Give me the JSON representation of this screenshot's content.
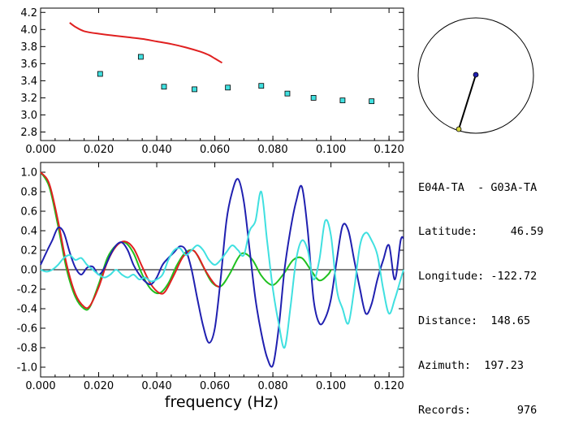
{
  "chart_data": [
    {
      "type": "scatter",
      "xlabel": "",
      "xlim": [
        0.0,
        0.125
      ],
      "ylim": [
        2.7,
        4.25
      ],
      "x_ticks": [
        0.0,
        0.02,
        0.04,
        0.06,
        0.08,
        0.1,
        0.12
      ],
      "x_tick_labels": [
        "0.000",
        "0.020",
        "0.040",
        "0.060",
        "0.080",
        "0.100",
        "0.120"
      ],
      "y_ticks": [
        2.8,
        3.0,
        3.2,
        3.4,
        3.6,
        3.8,
        4.0,
        4.2
      ],
      "y_tick_labels": [
        "2.8",
        "3.0",
        "3.2",
        "3.4",
        "3.6",
        "3.8",
        "4.0",
        "4.2"
      ],
      "series": [
        {
          "kind": "line",
          "color": "#e02020",
          "x": [
            0.01,
            0.012,
            0.015,
            0.02,
            0.025,
            0.03,
            0.035,
            0.04,
            0.045,
            0.05,
            0.055,
            0.058,
            0.06,
            0.0625
          ],
          "y": [
            4.08,
            4.03,
            3.98,
            3.95,
            3.93,
            3.91,
            3.89,
            3.86,
            3.83,
            3.79,
            3.74,
            3.7,
            3.66,
            3.61
          ]
        },
        {
          "kind": "points",
          "color": "#40e0e0",
          "x": [
            0.0205,
            0.0345,
            0.0425,
            0.053,
            0.0645,
            0.076,
            0.085,
            0.094,
            0.104,
            0.114
          ],
          "y": [
            3.48,
            3.68,
            3.33,
            3.3,
            3.32,
            3.34,
            3.25,
            3.2,
            3.17,
            3.16
          ]
        }
      ]
    },
    {
      "type": "line",
      "xlabel": "frequency  (Hz)",
      "xlim": [
        0.0,
        0.125
      ],
      "ylim": [
        -1.1,
        1.1
      ],
      "x_ticks": [
        0.0,
        0.02,
        0.04,
        0.06,
        0.08,
        0.1,
        0.12
      ],
      "x_tick_labels": [
        "0.000",
        "0.020",
        "0.040",
        "0.060",
        "0.080",
        "0.100",
        "0.120"
      ],
      "y_ticks": [
        -1.0,
        -0.8,
        -0.6,
        -0.4,
        -0.2,
        0.0,
        0.2,
        0.4,
        0.6,
        0.8,
        1.0
      ],
      "y_tick_labels": [
        "-1.0",
        "-0.8",
        "-0.6",
        "-0.4",
        "-0.2",
        "0.0",
        "0.2",
        "0.4",
        "0.6",
        "0.8",
        "1.0"
      ],
      "zero_line": true,
      "series": [
        {
          "color": "#20c020",
          "x": [
            0.0,
            0.003,
            0.006,
            0.009,
            0.012,
            0.015,
            0.017,
            0.02,
            0.023,
            0.026,
            0.029,
            0.032,
            0.035,
            0.038,
            0.041,
            0.044,
            0.047,
            0.05,
            0.053,
            0.056,
            0.059,
            0.062,
            0.065,
            0.068,
            0.07,
            0.073,
            0.076,
            0.079,
            0.081,
            0.084,
            0.087,
            0.09,
            0.093,
            0.096,
            0.099,
            0.1
          ],
          "y": [
            1.0,
            0.85,
            0.45,
            0.0,
            -0.28,
            -0.4,
            -0.38,
            -0.15,
            0.12,
            0.25,
            0.28,
            0.17,
            -0.05,
            -0.2,
            -0.24,
            -0.14,
            0.05,
            0.18,
            0.19,
            0.03,
            -0.13,
            -0.17,
            -0.05,
            0.12,
            0.17,
            0.1,
            -0.06,
            -0.15,
            -0.14,
            -0.03,
            0.1,
            0.12,
            0.0,
            -0.11,
            -0.05,
            0.0
          ]
        },
        {
          "color": "#e02020",
          "x": [
            0.0,
            0.003,
            0.006,
            0.009,
            0.012,
            0.015,
            0.017,
            0.02,
            0.023,
            0.026,
            0.029,
            0.032,
            0.035,
            0.038,
            0.041,
            0.043,
            0.046,
            0.049,
            0.052,
            0.054,
            0.057,
            0.06,
            0.062
          ],
          "y": [
            1.0,
            0.88,
            0.5,
            0.05,
            -0.25,
            -0.38,
            -0.37,
            -0.18,
            0.08,
            0.24,
            0.29,
            0.22,
            0.03,
            -0.15,
            -0.24,
            -0.22,
            -0.05,
            0.13,
            0.2,
            0.15,
            -0.02,
            -0.15,
            -0.18
          ]
        },
        {
          "color": "#2020b0",
          "x": [
            0.0,
            0.002,
            0.004,
            0.006,
            0.008,
            0.01,
            0.012,
            0.014,
            0.016,
            0.018,
            0.02,
            0.022,
            0.024,
            0.026,
            0.028,
            0.03,
            0.032,
            0.034,
            0.036,
            0.038,
            0.04,
            0.042,
            0.044,
            0.046,
            0.048,
            0.05,
            0.052,
            0.054,
            0.056,
            0.058,
            0.06,
            0.062,
            0.064,
            0.066,
            0.068,
            0.07,
            0.072,
            0.074,
            0.076,
            0.078,
            0.08,
            0.082,
            0.084,
            0.086,
            0.088,
            0.09,
            0.092,
            0.094,
            0.096,
            0.098,
            0.1,
            0.102,
            0.104,
            0.106,
            0.108,
            0.11,
            0.112,
            0.114,
            0.116,
            0.118,
            0.12,
            0.122,
            0.124,
            0.125
          ],
          "y": [
            0.05,
            0.18,
            0.3,
            0.43,
            0.38,
            0.18,
            0.02,
            -0.05,
            0.02,
            0.03,
            -0.05,
            0.02,
            0.15,
            0.25,
            0.28,
            0.2,
            0.05,
            -0.05,
            -0.12,
            -0.15,
            -0.08,
            0.05,
            0.12,
            0.18,
            0.24,
            0.2,
            0.0,
            -0.3,
            -0.58,
            -0.75,
            -0.6,
            -0.1,
            0.5,
            0.8,
            0.93,
            0.7,
            0.2,
            -0.3,
            -0.65,
            -0.9,
            -0.98,
            -0.6,
            0.0,
            0.4,
            0.7,
            0.85,
            0.4,
            -0.3,
            -0.55,
            -0.5,
            -0.3,
            0.1,
            0.45,
            0.4,
            0.1,
            -0.2,
            -0.45,
            -0.35,
            -0.1,
            0.1,
            0.25,
            -0.1,
            0.3,
            0.32
          ]
        },
        {
          "color": "#40e0e0",
          "x": [
            0.0,
            0.002,
            0.004,
            0.006,
            0.008,
            0.01,
            0.012,
            0.014,
            0.016,
            0.018,
            0.02,
            0.022,
            0.024,
            0.026,
            0.028,
            0.03,
            0.032,
            0.034,
            0.036,
            0.038,
            0.04,
            0.042,
            0.044,
            0.046,
            0.048,
            0.05,
            0.052,
            0.054,
            0.056,
            0.058,
            0.06,
            0.062,
            0.064,
            0.066,
            0.068,
            0.07,
            0.072,
            0.074,
            0.076,
            0.078,
            0.08,
            0.082,
            0.084,
            0.086,
            0.088,
            0.09,
            0.092,
            0.094,
            0.096,
            0.098,
            0.1,
            0.102,
            0.104,
            0.106,
            0.108,
            0.11,
            0.112,
            0.114,
            0.116,
            0.118,
            0.12,
            0.122,
            0.124,
            0.125
          ],
          "y": [
            0.0,
            -0.02,
            0.0,
            0.05,
            0.12,
            0.15,
            0.1,
            0.12,
            0.05,
            0.0,
            -0.05,
            -0.08,
            -0.05,
            0.0,
            -0.05,
            -0.08,
            -0.05,
            -0.1,
            -0.08,
            -0.12,
            -0.1,
            -0.05,
            0.1,
            0.2,
            0.22,
            0.15,
            0.2,
            0.25,
            0.2,
            0.1,
            0.05,
            0.1,
            0.18,
            0.25,
            0.2,
            0.15,
            0.4,
            0.5,
            0.8,
            0.3,
            -0.2,
            -0.55,
            -0.8,
            -0.4,
            0.1,
            0.3,
            0.2,
            -0.1,
            0.1,
            0.5,
            0.35,
            -0.2,
            -0.4,
            -0.55,
            -0.2,
            0.25,
            0.38,
            0.3,
            0.15,
            -0.2,
            -0.45,
            -0.3,
            -0.1,
            0.0
          ]
        }
      ]
    }
  ],
  "station": {
    "pair": "E04A-TA  - G03A-TA",
    "rows": [
      {
        "key": "Latitude:  ",
        "value": "   46.59"
      },
      {
        "key": "Longitude: ",
        "value": "-122.72"
      },
      {
        "key": "Distance:  ",
        "value": "148.65"
      },
      {
        "key": "Azimuth: ",
        "value": " 197.23"
      },
      {
        "key": "Records:   ",
        "value": "    976"
      }
    ]
  },
  "map_colors": {
    "circle": "#000000",
    "center_dot": "#2020b0",
    "edge_dot": "#d8d840"
  }
}
